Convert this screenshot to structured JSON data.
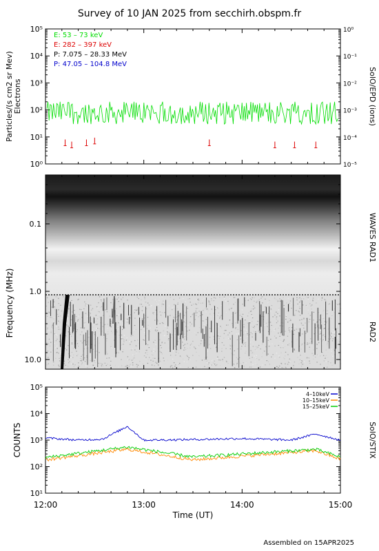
{
  "page": {
    "title": "Survey of 10 JAN 2025 from secchirh.obspm.fr",
    "footer": "Assembled on 15APR2025"
  },
  "chart_data": [
    {
      "type": "line",
      "panel": "SolO/EPD",
      "ylabel": "Particles/(s cm2 sr Mev)",
      "ylabel2": "Electrons",
      "right_label": "SolO/EPD (ions)",
      "yscale": "log",
      "ylim": [
        1,
        100000
      ],
      "yticks_left": [
        "10⁰",
        "10¹",
        "10²",
        "10³",
        "10⁴",
        "10⁵"
      ],
      "yticks_right": [
        "10⁻⁵",
        "10⁻⁴",
        "10⁻³",
        "10⁻²",
        "10⁻¹",
        "10⁰"
      ],
      "legend": [
        {
          "label": "E: 53 – 73 keV",
          "color": "#00dd00"
        },
        {
          "label": "E: 282 – 397 keV",
          "color": "#dd0000"
        },
        {
          "label": "P: 7.075 – 28.33 MeV",
          "color": "#000000"
        },
        {
          "label": "P: 47.05 – 104.8 MeV",
          "color": "#0000cc"
        }
      ],
      "series": [
        {
          "name": "E: 53 – 73 keV",
          "color": "#00dd00",
          "typical_value": 80,
          "range": [
            30,
            200
          ]
        },
        {
          "name": "E: 282 – 397 keV",
          "color": "#dd0000",
          "sparse_points": [
            {
              "t": "12:12",
              "v": 6
            },
            {
              "t": "12:16",
              "v": 5
            },
            {
              "t": "12:25",
              "v": 6
            },
            {
              "t": "12:30",
              "v": 7
            },
            {
              "t": "13:40",
              "v": 6
            },
            {
              "t": "14:20",
              "v": 5
            },
            {
              "t": "14:32",
              "v": 5
            },
            {
              "t": "14:45",
              "v": 5
            }
          ]
        }
      ]
    },
    {
      "type": "heatmap",
      "panel": "WAVES",
      "ylabel": "Frequency (MHz)",
      "right_label_top": "WAVES RAD1",
      "right_label_bottom": "RAD2",
      "yscale": "log",
      "yticks": [
        "0.1",
        "1.0",
        "10.0"
      ]
    },
    {
      "type": "line",
      "panel": "SolO/STIX",
      "ylabel": "COUNTS",
      "right_label": "SolO/STIX",
      "xlabel": "Time (UT)",
      "yscale": "log",
      "ylim": [
        10,
        100000
      ],
      "yticks": [
        "10¹",
        "10²",
        "10³",
        "10⁴",
        "10⁵"
      ],
      "xticks": [
        "12:00",
        "13:00",
        "14:00",
        "15:00"
      ],
      "legend": [
        {
          "label": "4–10keV",
          "color": "#0000cc"
        },
        {
          "label": "10–15keV",
          "color": "#ff8800"
        },
        {
          "label": "15–25keV",
          "color": "#00cc00"
        }
      ],
      "series": [
        {
          "name": "4–10keV",
          "color": "#0000cc",
          "x": [
            "12:00",
            "12:20",
            "12:35",
            "12:50",
            "13:00",
            "13:30",
            "14:00",
            "14:30",
            "14:45",
            "15:00"
          ],
          "values": [
            1200,
            1000,
            1100,
            3300,
            1000,
            1050,
            1150,
            1000,
            1700,
            1000
          ]
        },
        {
          "name": "10–15keV",
          "color": "#ff8800",
          "x": [
            "12:00",
            "12:50",
            "13:30",
            "14:45",
            "15:00"
          ],
          "values": [
            180,
            450,
            180,
            400,
            190
          ]
        },
        {
          "name": "15–25keV",
          "color": "#00cc00",
          "x": [
            "12:00",
            "12:50",
            "13:30",
            "14:45",
            "15:00"
          ],
          "values": [
            220,
            550,
            230,
            450,
            230
          ]
        }
      ]
    }
  ]
}
